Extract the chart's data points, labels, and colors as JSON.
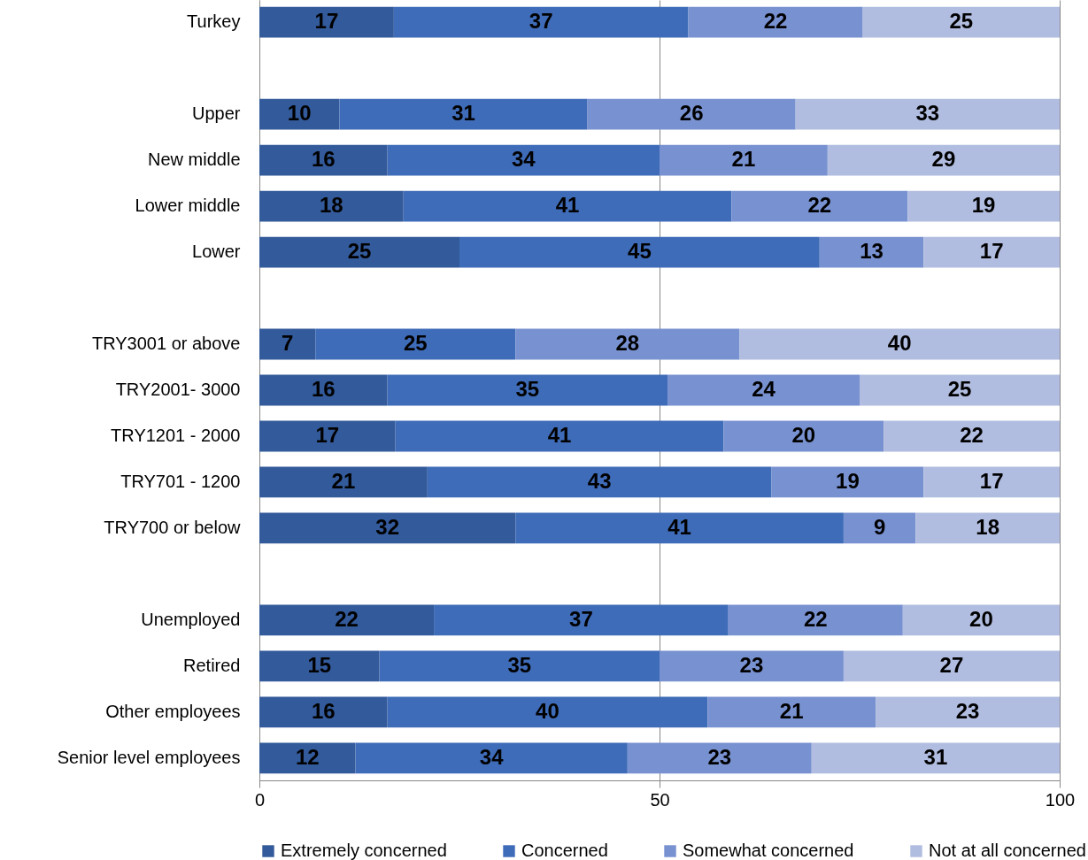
{
  "chart_data": {
    "type": "bar",
    "orientation": "horizontal",
    "stacked": true,
    "grid": "x",
    "legend": "bottom",
    "categories": [
      "Turkey",
      null,
      "Upper",
      "New middle",
      "Lower middle",
      "Lower",
      null,
      "TRY3001 or above",
      "TRY2001- 3000",
      "TRY1201 - 2000",
      "TRY701 - 1200",
      "TRY700 or below",
      null,
      "Unemployed",
      "Retired",
      "Other employees",
      "Senior level employees"
    ],
    "xlim": [
      0,
      100
    ],
    "xticks": [
      0,
      50,
      100
    ],
    "series": [
      {
        "name": "Extremely concerned",
        "color": "#335a9a",
        "values": [
          16.8,
          null,
          10,
          16,
          18,
          25,
          null,
          7,
          16,
          17,
          21,
          32,
          null,
          21.8,
          15,
          16,
          12
        ],
        "value_labels": [
          "17",
          null,
          "10",
          "16",
          "18",
          "25",
          null,
          "7",
          "16",
          "17",
          "21",
          "32",
          null,
          "22",
          "15",
          "16",
          "12"
        ]
      },
      {
        "name": "Concerned",
        "color": "#3f6cb8",
        "values": [
          36.8,
          null,
          31,
          34,
          41,
          45,
          null,
          25,
          35,
          41,
          43,
          41,
          null,
          36.8,
          35,
          40,
          34
        ],
        "value_labels": [
          "37",
          null,
          "31",
          "34",
          "41",
          "45",
          null,
          "25",
          "35",
          "41",
          "43",
          "41",
          null,
          "37",
          "35",
          "40",
          "34"
        ]
      },
      {
        "name": "Somewhat concerned",
        "color": "#7891d0",
        "values": [
          21.8,
          null,
          26,
          21,
          22,
          13,
          null,
          28,
          24,
          20,
          19,
          9,
          null,
          21.8,
          23,
          21,
          23
        ],
        "value_labels": [
          "22",
          null,
          "26",
          "21",
          "22",
          "13",
          null,
          "28",
          "24",
          "20",
          "19",
          "9",
          null,
          "22",
          "23",
          "21",
          "23"
        ]
      },
      {
        "name": "Not at all concerned",
        "color": "#b1bde0",
        "values": [
          24.6,
          null,
          33,
          29,
          19,
          17,
          null,
          40,
          25,
          22,
          17,
          18,
          null,
          19.6,
          27,
          23,
          31
        ],
        "value_labels": [
          "25",
          null,
          "33",
          "29",
          "19",
          "17",
          null,
          "40",
          "25",
          "22",
          "17",
          "18",
          null,
          "20",
          "27",
          "23",
          "31"
        ]
      }
    ]
  }
}
